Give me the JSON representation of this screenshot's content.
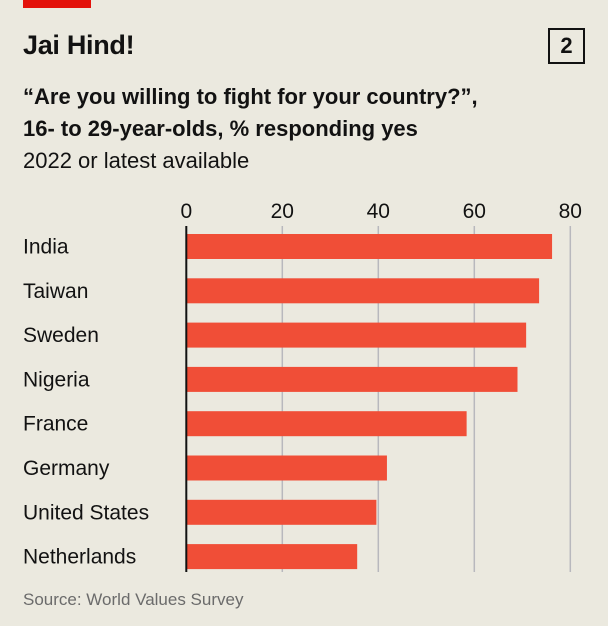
{
  "header": {
    "title": "Jai Hind!",
    "badge": "2",
    "subtitle_line1": "“Are you willing to fight for your country?”,",
    "subtitle_line2": "16- to 29-year-olds, % responding yes",
    "note": "2022 or latest available"
  },
  "source": "Source: World Values Survey",
  "colors": {
    "bar": "#f04e37",
    "accent": "#e3120b",
    "grid": "#b8b8bd",
    "background": "#ebe9df"
  },
  "chart_data": {
    "type": "bar",
    "orientation": "horizontal",
    "categories": [
      "India",
      "Taiwan",
      "Sweden",
      "Nigeria",
      "France",
      "Germany",
      "United States",
      "Netherlands"
    ],
    "values": [
      76.2,
      73.5,
      70.8,
      69.0,
      58.4,
      41.8,
      39.6,
      35.6
    ],
    "xlim": [
      0,
      80
    ],
    "ticks": [
      0,
      20,
      40,
      60,
      80
    ],
    "grid": true,
    "tick_position": "top"
  }
}
